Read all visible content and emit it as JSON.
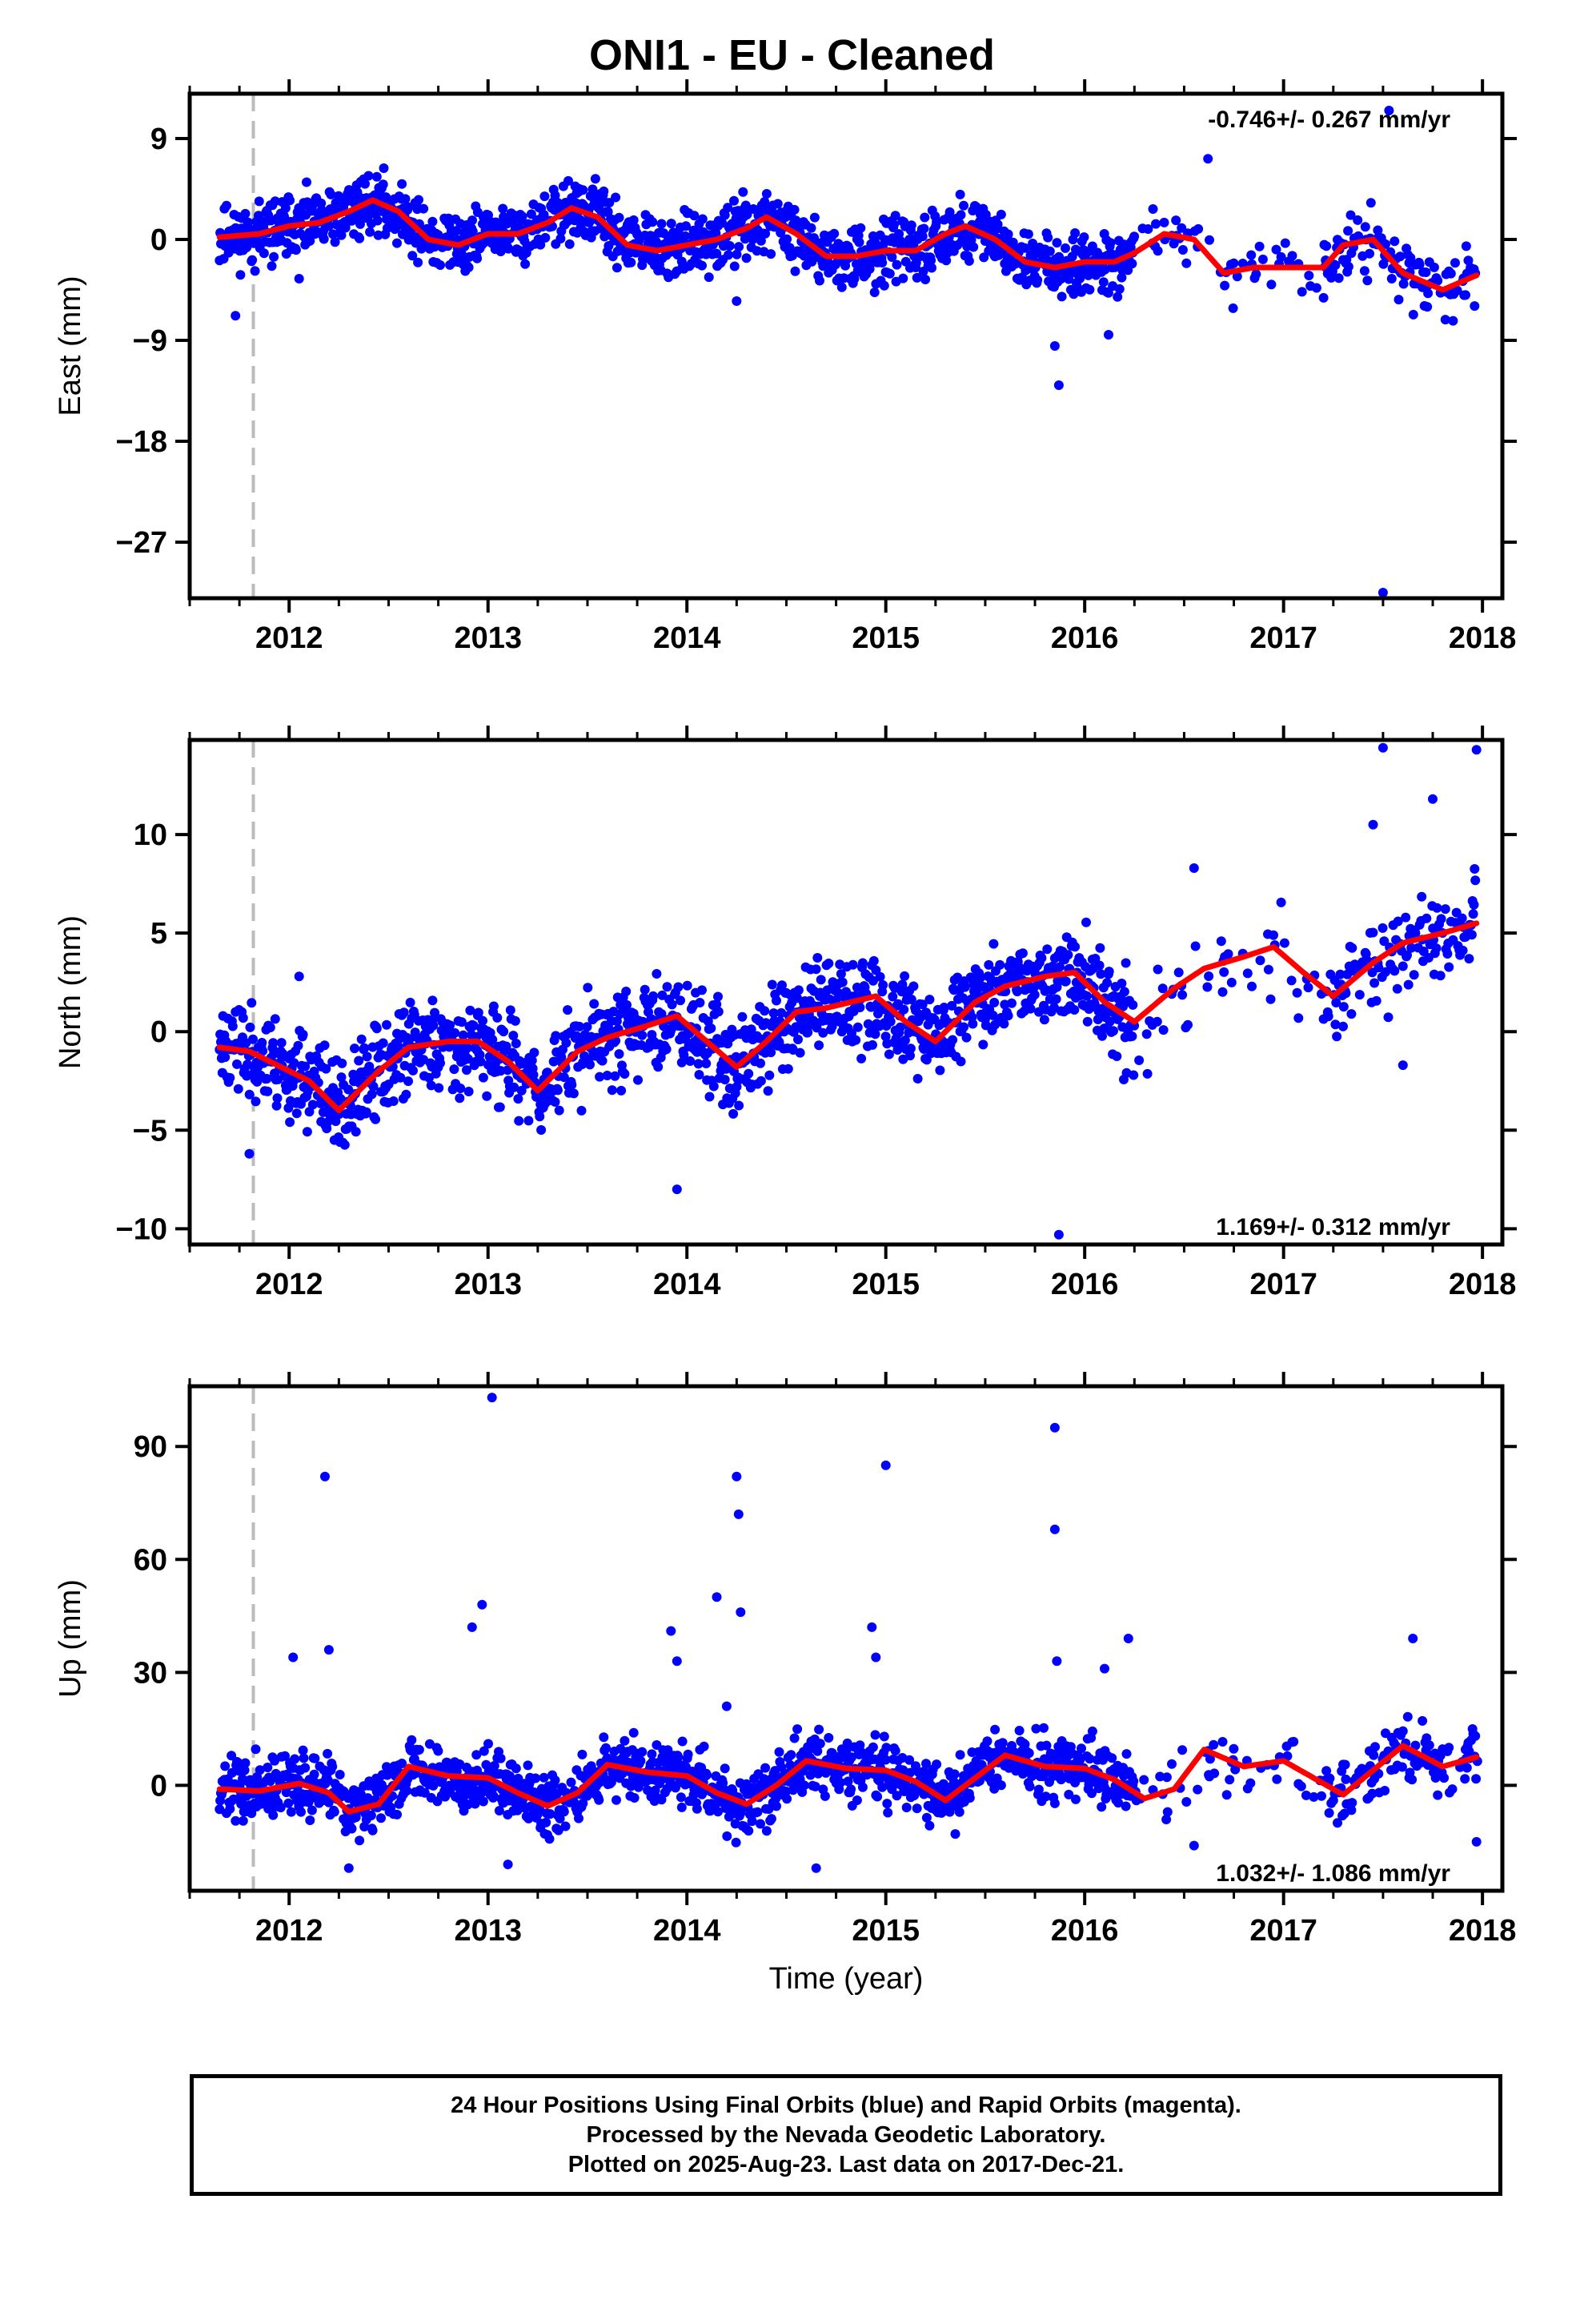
{
  "title": "ONI1  - EU - Cleaned",
  "footer": {
    "lines": [
      "24 Hour Positions Using Final Orbits (blue) and Rapid Orbits (magenta).",
      "Processed by the Nevada Geodetic Laboratory.",
      "Plotted on 2025-Aug-23. Last data on 2017-Dec-21."
    ]
  },
  "colors": {
    "points": "#0000ff",
    "fit": "#ff0000",
    "marker": "#bbbbbb",
    "frame": "#000000"
  },
  "chart_data": [
    {
      "type": "scatter",
      "name": "east",
      "ylabel": "East (mm)",
      "xlabel": "",
      "rate": "-0.746+/- 0.267 mm/yr",
      "rate_position": "top-right",
      "xlim": [
        2011.5,
        2018.1
      ],
      "ylim": [
        -32,
        13
      ],
      "xticks": [
        "2012",
        "2013",
        "2014",
        "2015",
        "2016",
        "2017",
        "2018"
      ],
      "yticks": [
        9,
        0,
        -9,
        -18,
        -27
      ],
      "vline_year": 2011.82,
      "fit": {
        "x": [
          2011.65,
          2011.85,
          2012.0,
          2012.15,
          2012.3,
          2012.42,
          2012.55,
          2012.7,
          2012.85,
          2013.0,
          2013.15,
          2013.3,
          2013.42,
          2013.55,
          2013.7,
          2013.85,
          2014.0,
          2014.15,
          2014.3,
          2014.4,
          2014.55,
          2014.7,
          2014.85,
          2015.0,
          2015.15,
          2015.3,
          2015.4,
          2015.55,
          2015.7,
          2015.85,
          2016.0,
          2016.15,
          2016.25,
          2016.4,
          2016.55,
          2016.7,
          2016.85,
          2017.0,
          2017.2,
          2017.3,
          2017.45,
          2017.6,
          2017.8,
          2017.97
        ],
        "y": [
          0.2,
          0.5,
          1.2,
          1.5,
          2.5,
          3.5,
          2.5,
          0.0,
          -0.5,
          0.5,
          0.5,
          1.5,
          2.8,
          2.0,
          -0.5,
          -1.0,
          -0.5,
          0.0,
          1.0,
          2.0,
          0.5,
          -1.5,
          -1.5,
          -1.0,
          -1.0,
          0.5,
          1.2,
          0.0,
          -2.0,
          -2.5,
          -2.0,
          -2.0,
          -1.2,
          0.5,
          0.0,
          -3.0,
          -2.5,
          -2.5,
          -2.5,
          -0.5,
          0.0,
          -3.0,
          -4.5,
          -3.2
        ]
      },
      "scatter": {
        "amp": 1.8,
        "seed": 11
      },
      "outliers": [
        {
          "x": 2011.73,
          "y": -6.8
        },
        {
          "x": 2012.05,
          "y": -3.5
        },
        {
          "x": 2014.25,
          "y": -5.5
        },
        {
          "x": 2015.85,
          "y": -9.5
        },
        {
          "x": 2015.87,
          "y": -13.0
        },
        {
          "x": 2016.12,
          "y": -8.5
        },
        {
          "x": 2016.62,
          "y": 7.2
        },
        {
          "x": 2017.5,
          "y": -31.5
        },
        {
          "x": 2017.53,
          "y": 11.5
        }
      ]
    },
    {
      "type": "scatter",
      "name": "north",
      "ylabel": "North (mm)",
      "xlabel": "",
      "rate": "1.169+/- 0.312 mm/yr",
      "rate_position": "bottom-right",
      "xlim": [
        2011.5,
        2018.1
      ],
      "ylim": [
        -10.8,
        14.8
      ],
      "xticks": [
        "2012",
        "2013",
        "2014",
        "2015",
        "2016",
        "2017",
        "2018"
      ],
      "yticks": [
        10,
        5,
        0,
        -5,
        -10
      ],
      "vline_year": 2011.82,
      "fit": {
        "x": [
          2011.65,
          2011.8,
          2012.0,
          2012.1,
          2012.25,
          2012.45,
          2012.6,
          2012.8,
          2012.95,
          2013.1,
          2013.25,
          2013.45,
          2013.6,
          2013.8,
          2013.95,
          2014.1,
          2014.25,
          2014.4,
          2014.55,
          2014.7,
          2014.95,
          2015.1,
          2015.25,
          2015.45,
          2015.6,
          2015.8,
          2015.95,
          2016.1,
          2016.25,
          2016.45,
          2016.6,
          2016.8,
          2016.95,
          2017.1,
          2017.25,
          2017.45,
          2017.6,
          2017.8,
          2017.97
        ],
        "y": [
          -0.8,
          -1.0,
          -2.0,
          -2.5,
          -4.0,
          -2.0,
          -0.8,
          -0.5,
          -0.5,
          -1.5,
          -3.0,
          -1.0,
          -0.3,
          0.3,
          0.8,
          -0.5,
          -1.8,
          -0.5,
          1.0,
          1.2,
          1.8,
          0.5,
          -0.5,
          1.5,
          2.3,
          2.8,
          3.0,
          1.5,
          0.5,
          2.2,
          3.2,
          3.8,
          4.3,
          3.0,
          1.8,
          3.5,
          4.5,
          5.0,
          5.5
        ]
      },
      "scatter": {
        "amp": 1.6,
        "seed": 23
      },
      "outliers": [
        {
          "x": 2011.8,
          "y": -6.2
        },
        {
          "x": 2012.05,
          "y": 2.8
        },
        {
          "x": 2013.95,
          "y": -8.0
        },
        {
          "x": 2015.87,
          "y": -10.3
        },
        {
          "x": 2016.55,
          "y": 8.3
        },
        {
          "x": 2017.45,
          "y": 10.5
        },
        {
          "x": 2017.5,
          "y": 14.4
        },
        {
          "x": 2017.6,
          "y": -1.7
        },
        {
          "x": 2017.75,
          "y": 11.8
        },
        {
          "x": 2017.97,
          "y": 14.3
        }
      ]
    },
    {
      "type": "scatter",
      "name": "up",
      "ylabel": "Up (mm)",
      "xlabel": "Time (year)",
      "rate": "1.032+/- 1.086 mm/yr",
      "rate_position": "bottom-right",
      "xlim": [
        2011.5,
        2018.1
      ],
      "ylim": [
        -28,
        106
      ],
      "xticks": [
        "2012",
        "2013",
        "2014",
        "2015",
        "2016",
        "2017",
        "2018"
      ],
      "yticks": [
        90,
        60,
        30,
        0
      ],
      "vline_year": 2011.82,
      "fit": {
        "x": [
          2011.65,
          2011.85,
          2012.05,
          2012.2,
          2012.3,
          2012.45,
          2012.6,
          2012.8,
          2013.0,
          2013.15,
          2013.3,
          2013.45,
          2013.6,
          2013.8,
          2014.0,
          2014.15,
          2014.3,
          2014.45,
          2014.6,
          2014.8,
          2015.0,
          2015.15,
          2015.3,
          2015.45,
          2015.6,
          2015.8,
          2016.0,
          2016.15,
          2016.3,
          2016.45,
          2016.6,
          2016.8,
          2017.0,
          2017.15,
          2017.3,
          2017.45,
          2017.6,
          2017.8,
          2017.97
        ],
        "y": [
          -1.0,
          -1.5,
          0.5,
          -2.0,
          -7.0,
          -5.0,
          5.0,
          2.5,
          2.0,
          -2.0,
          -5.5,
          -2.0,
          5.5,
          3.5,
          2.5,
          -2.0,
          -5.0,
          0.0,
          6.5,
          4.5,
          4.0,
          1.0,
          -4.0,
          2.0,
          8.0,
          5.0,
          4.5,
          1.5,
          -3.5,
          -1.0,
          9.5,
          5.0,
          6.5,
          2.0,
          -2.5,
          4.0,
          10.5,
          5.0,
          7.5
        ]
      },
      "scatter": {
        "amp": 5.5,
        "seed": 37
      },
      "outliers": [
        {
          "x": 2012.02,
          "y": 34
        },
        {
          "x": 2012.18,
          "y": 82
        },
        {
          "x": 2012.2,
          "y": 36
        },
        {
          "x": 2012.3,
          "y": -22
        },
        {
          "x": 2012.92,
          "y": 42
        },
        {
          "x": 2012.97,
          "y": 48
        },
        {
          "x": 2013.02,
          "y": 103
        },
        {
          "x": 2013.1,
          "y": -21
        },
        {
          "x": 2013.92,
          "y": 41
        },
        {
          "x": 2013.95,
          "y": 33
        },
        {
          "x": 2014.15,
          "y": 50
        },
        {
          "x": 2014.2,
          "y": 21
        },
        {
          "x": 2014.25,
          "y": 82
        },
        {
          "x": 2014.26,
          "y": 72
        },
        {
          "x": 2014.27,
          "y": 46
        },
        {
          "x": 2014.65,
          "y": -22
        },
        {
          "x": 2014.93,
          "y": 42
        },
        {
          "x": 2014.95,
          "y": 34
        },
        {
          "x": 2015.0,
          "y": 85
        },
        {
          "x": 2015.85,
          "y": 95
        },
        {
          "x": 2015.85,
          "y": 68
        },
        {
          "x": 2015.86,
          "y": 33
        },
        {
          "x": 2016.1,
          "y": 31
        },
        {
          "x": 2016.22,
          "y": 39
        },
        {
          "x": 2016.55,
          "y": -16
        },
        {
          "x": 2017.65,
          "y": 39
        },
        {
          "x": 2017.97,
          "y": -15
        }
      ]
    }
  ]
}
